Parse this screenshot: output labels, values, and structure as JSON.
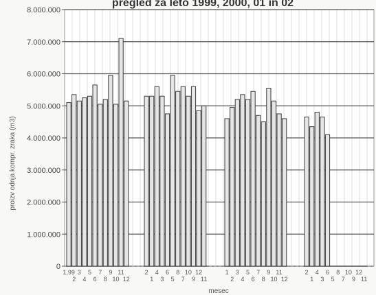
{
  "chart_data": {
    "type": "bar",
    "title": "pregled za leto 1999, 2000, 01 in 02",
    "ylabel": "proizv odnja kompr. zraka (m3)",
    "xlabel": "mesec",
    "ylim": [
      0,
      8000000
    ],
    "yticks": [
      "0",
      "1.000.000",
      "2.000.000",
      "3.000.000",
      "4.000.000",
      "5.000.000",
      "6.000.000",
      "7.000.000",
      "8.000.000"
    ],
    "grid": true,
    "groups": [
      {
        "x_labels_top": [
          "1,99",
          "3",
          "5",
          "7",
          "9",
          "11"
        ],
        "x_labels_bottom": [
          "2",
          "4",
          "6",
          "8",
          "10",
          "12"
        ],
        "values": [
          5100000,
          5350000,
          5150000,
          5250000,
          5300000,
          5650000,
          5050000,
          5200000,
          5950000,
          5050000,
          7100000,
          5150000
        ]
      },
      {
        "x_labels_top": [
          "2",
          "4",
          "6",
          "8",
          "10",
          "12"
        ],
        "x_labels_bottom": [
          "1",
          "3",
          "5",
          "7",
          "9",
          "11"
        ],
        "values": [
          5300000,
          5300000,
          5600000,
          5300000,
          4750000,
          5950000,
          5450000,
          5600000,
          5300000,
          5600000,
          4850000,
          5000000
        ]
      },
      {
        "x_labels_top": [
          "1",
          "3",
          "5",
          "7",
          "9",
          "11"
        ],
        "x_labels_bottom": [
          "2",
          "4",
          "6",
          "8",
          "10",
          "12"
        ],
        "values": [
          4600000,
          4950000,
          5200000,
          5350000,
          5200000,
          5450000,
          4700000,
          4500000,
          5550000,
          5150000,
          4750000,
          4600000
        ]
      },
      {
        "x_labels_top": [
          "2",
          "4",
          "6",
          "8",
          "10",
          "12"
        ],
        "x_labels_bottom": [
          "1",
          "3",
          "5",
          "7",
          "9",
          "11"
        ],
        "values": [
          4650000,
          4350000,
          4800000,
          4650000,
          4100000,
          0,
          0,
          0,
          0,
          0,
          0,
          0
        ]
      }
    ]
  }
}
